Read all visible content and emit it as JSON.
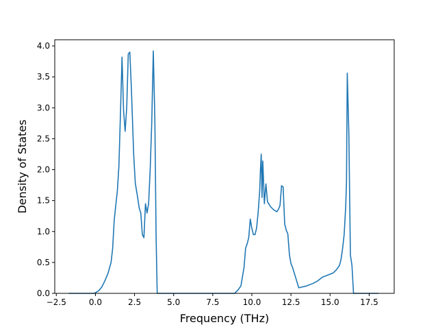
{
  "chart_data": {
    "type": "line",
    "title": "",
    "xlabel": "Frequency (THz)",
    "ylabel": "Density of States",
    "xlim": [
      -2.6,
      19.1
    ],
    "ylim": [
      0,
      4.1
    ],
    "xticks": [
      -2.5,
      0.0,
      2.5,
      5.0,
      7.5,
      10.0,
      12.5,
      15.0,
      17.5
    ],
    "xtick_labels": [
      "−2.5",
      "0.0",
      "2.5",
      "5.0",
      "7.5",
      "10.0",
      "12.5",
      "15.0",
      "17.5"
    ],
    "yticks": [
      0.0,
      0.5,
      1.0,
      1.5,
      2.0,
      2.5,
      3.0,
      3.5,
      4.0
    ],
    "ytick_labels": [
      "0.0",
      "0.5",
      "1.0",
      "1.5",
      "2.0",
      "2.5",
      "3.0",
      "3.5",
      "4.0"
    ],
    "grid": false,
    "line_color": "#1f77b4",
    "series": [
      {
        "x": [
          -1.7,
          -0.5,
          -0.1,
          0.0,
          0.2,
          0.4,
          0.6,
          0.8,
          1.0,
          1.1,
          1.2,
          1.3,
          1.4,
          1.5,
          1.6,
          1.7,
          1.8,
          1.9,
          2.0,
          2.1,
          2.2,
          2.3,
          2.45,
          2.55,
          2.7,
          2.8,
          2.9,
          3.0,
          3.1,
          3.2,
          3.3,
          3.4,
          3.5,
          3.6,
          3.7,
          3.8,
          3.88,
          3.95,
          5.0,
          7.5,
          8.9,
          9.1,
          9.3,
          9.5,
          9.6,
          9.7,
          9.8,
          9.9,
          10.0,
          10.1,
          10.2,
          10.3,
          10.4,
          10.5,
          10.55,
          10.6,
          10.65,
          10.7,
          10.8,
          10.9,
          11.0,
          11.2,
          11.4,
          11.6,
          11.7,
          11.8,
          11.9,
          12.0,
          12.1,
          12.2,
          12.3,
          12.4,
          12.5,
          12.6,
          13.0,
          13.5,
          13.9,
          14.2,
          14.5,
          15.0,
          15.2,
          15.4,
          15.6,
          15.7,
          15.8,
          15.9,
          16.0,
          16.05,
          16.1,
          16.2,
          16.3,
          16.4,
          16.5,
          16.6,
          17.0,
          18.1
        ],
        "y": [
          0.0,
          0.0,
          0.0,
          0.01,
          0.04,
          0.1,
          0.2,
          0.32,
          0.5,
          0.72,
          1.18,
          1.42,
          1.65,
          2.05,
          2.9,
          3.82,
          2.95,
          2.62,
          3.0,
          3.87,
          3.9,
          3.3,
          2.22,
          1.78,
          1.55,
          1.38,
          1.3,
          0.95,
          0.9,
          1.45,
          1.3,
          1.45,
          2.0,
          2.75,
          3.92,
          2.8,
          0.9,
          0.0,
          0.0,
          0.0,
          0.0,
          0.05,
          0.12,
          0.42,
          0.73,
          0.8,
          0.9,
          1.2,
          1.05,
          0.95,
          0.95,
          1.05,
          1.3,
          1.65,
          2.0,
          2.25,
          1.55,
          2.14,
          1.45,
          1.77,
          1.48,
          1.4,
          1.35,
          1.32,
          1.36,
          1.42,
          1.74,
          1.72,
          1.12,
          1.02,
          0.96,
          0.63,
          0.48,
          0.42,
          0.09,
          0.12,
          0.16,
          0.2,
          0.26,
          0.31,
          0.33,
          0.38,
          0.45,
          0.55,
          0.72,
          0.95,
          1.4,
          1.8,
          3.56,
          2.6,
          0.62,
          0.45,
          0.0,
          0.0,
          0.0,
          0.0
        ]
      }
    ]
  }
}
